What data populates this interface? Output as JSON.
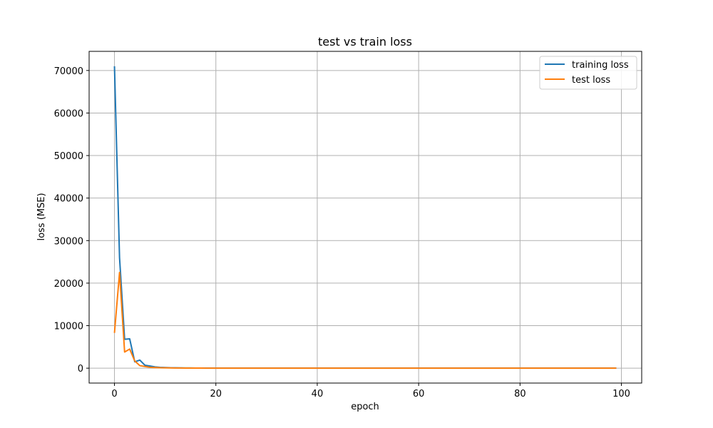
{
  "chart_data": {
    "type": "line",
    "title": "test vs train loss",
    "xlabel": "epoch",
    "ylabel": "loss (MSE)",
    "xlim": [
      -5,
      104
    ],
    "ylim": [
      -3500,
      74500
    ],
    "x_ticks": [
      0,
      20,
      40,
      60,
      80,
      100
    ],
    "y_ticks": [
      0,
      10000,
      20000,
      30000,
      40000,
      50000,
      60000,
      70000
    ],
    "grid": true,
    "legend_position": "upper right",
    "epochs_count": 100,
    "series": [
      {
        "name": "training loss",
        "color": "#1f77b4",
        "values": [
          71000,
          26000,
          6800,
          6900,
          1500,
          1900,
          700,
          500,
          300,
          200,
          150,
          100,
          80,
          60,
          50,
          40,
          30,
          25,
          20,
          15
        ]
      },
      {
        "name": "test loss",
        "color": "#ff7f0e",
        "values": [
          8300,
          22500,
          3800,
          4500,
          1700,
          600,
          400,
          200,
          150,
          100,
          80,
          60,
          50,
          40,
          30,
          25,
          20,
          15,
          10,
          8
        ]
      }
    ]
  }
}
